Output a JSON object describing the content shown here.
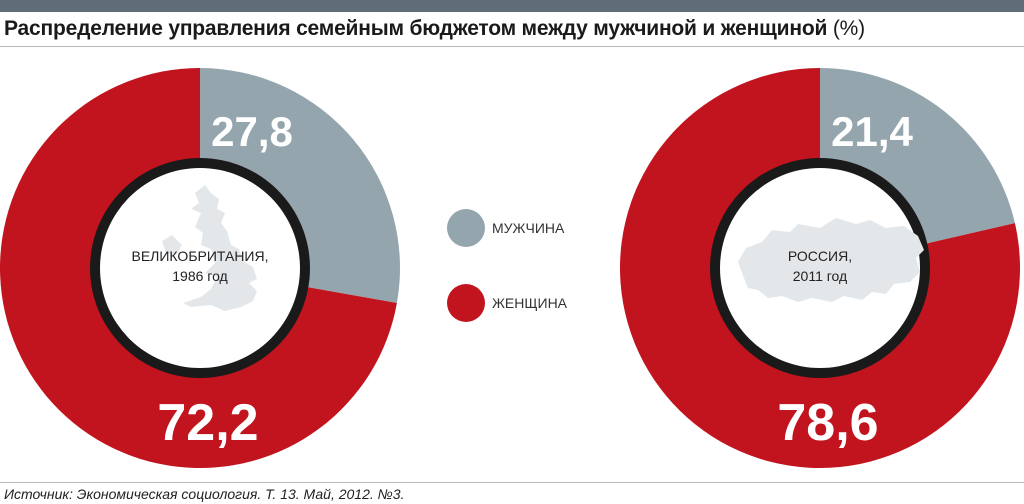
{
  "title": "Распределение управления семейным бюджетом между мужчиной и женщиной",
  "title_unit": "(%)",
  "source": "Источник: Экономическая социология. Т. 13. Май, 2012. №3.",
  "colors": {
    "man": "#95a5ae",
    "woman": "#c1141e",
    "ring": "#1a1a1a",
    "center": "#ffffff",
    "map": "#e3e7ea"
  },
  "legend": {
    "man": "МУЖЧИНА",
    "woman": "ЖЕНЩИНА"
  },
  "chart_data": [
    {
      "type": "pie",
      "center_label": [
        "ВЕЛИКОБРИТАНИЯ,",
        "1986 год"
      ],
      "categories": [
        "МУЖЧИНА",
        "ЖЕНЩИНА"
      ],
      "values": [
        27.8,
        72.2
      ],
      "value_labels": [
        "27,8",
        "72,2"
      ]
    },
    {
      "type": "pie",
      "center_label": [
        "РОССИЯ,",
        "2011 год"
      ],
      "categories": [
        "МУЖЧИНА",
        "ЖЕНЩИНА"
      ],
      "values": [
        21.4,
        78.6
      ],
      "value_labels": [
        "21,4",
        "78,6"
      ]
    }
  ]
}
